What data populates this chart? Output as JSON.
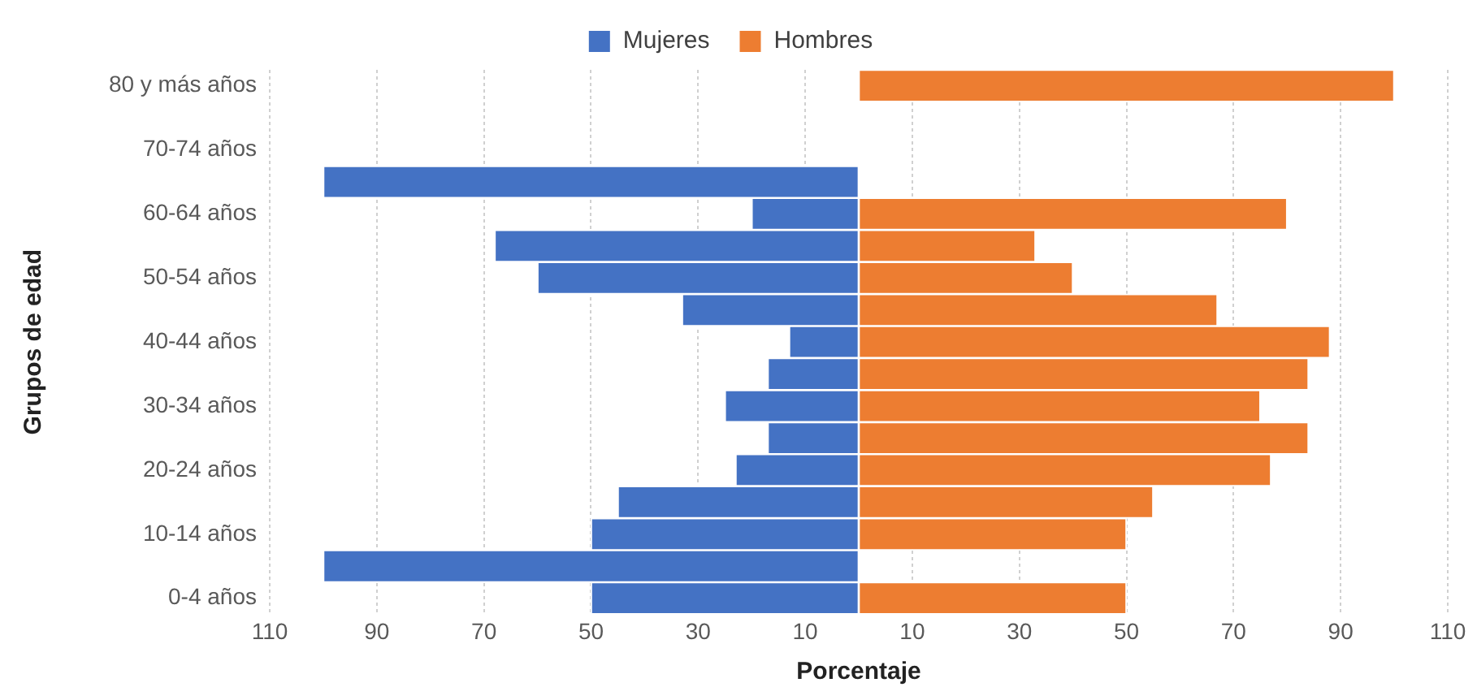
{
  "chart_data": {
    "type": "bar",
    "orientation": "horizontal",
    "stacked": true,
    "xlabel": "Porcentaje",
    "ylabel": "Grupos de edad",
    "categories": [
      "80 y más años",
      null,
      "70-74 años",
      null,
      "60-64 años",
      null,
      "50-54 años",
      null,
      "40-44 años",
      null,
      "30-34 años",
      null,
      "20-24 años",
      null,
      "10-14 años",
      null,
      "0-4 años"
    ],
    "series": [
      {
        "name": "Mujeres",
        "color": "#4472c4",
        "values": [
          null,
          null,
          null,
          -100,
          -20,
          -68,
          -60,
          -33,
          -13,
          -17,
          -25,
          -17,
          -23,
          -45,
          -50,
          -100,
          -50
        ]
      },
      {
        "name": "Hombres",
        "color": "#ed7d31",
        "values": [
          100,
          null,
          null,
          null,
          80,
          33,
          40,
          67,
          88,
          84,
          75,
          84,
          77,
          55,
          50,
          null,
          50
        ]
      }
    ],
    "xlim": [
      -110,
      110
    ],
    "xticks": [
      {
        "value": -110,
        "label": "110"
      },
      {
        "value": -90,
        "label": "90"
      },
      {
        "value": -70,
        "label": "70"
      },
      {
        "value": -50,
        "label": "50"
      },
      {
        "value": -30,
        "label": "30"
      },
      {
        "value": -10,
        "label": "10"
      },
      10,
      30,
      50,
      70,
      90,
      110
    ],
    "grid": "x",
    "legend": "top"
  }
}
